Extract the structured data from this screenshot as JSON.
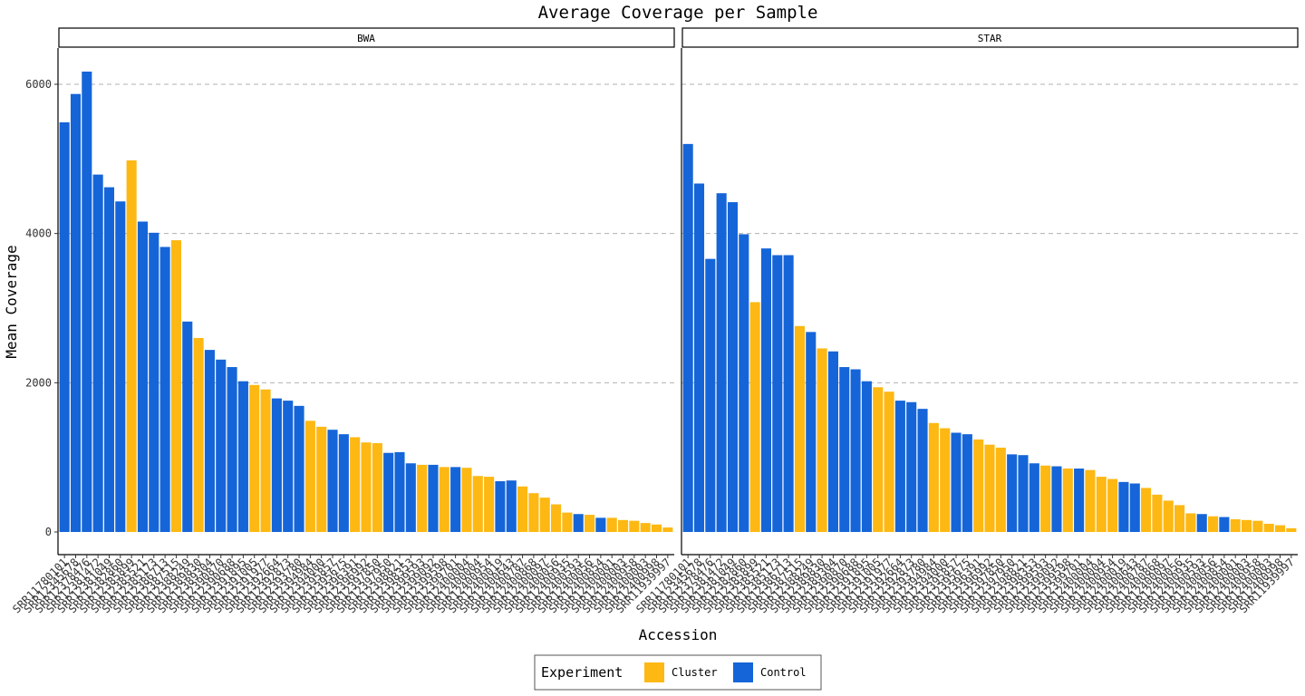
{
  "chart_data": {
    "type": "bar",
    "title": "Average Coverage per Sample",
    "xlabel": "Accession",
    "ylabel": "Mean Coverage",
    "ylim": [
      0,
      6500
    ],
    "yticks": [
      0,
      2000,
      4000,
      6000
    ],
    "grid": "horizontal dashed",
    "legend": {
      "title": "Experiment",
      "position": "bottom",
      "entries": [
        {
          "name": "Cluster",
          "color": "#FDB813"
        },
        {
          "name": "Control",
          "color": "#1565D8"
        }
      ]
    },
    "colors": {
      "Cluster": "#FDB813",
      "Control": "#1565D8"
    },
    "panels": [
      {
        "name": "BWA",
        "categories": [
          "SRR11780101",
          "SRR12345678",
          "SRR12378476",
          "SRR12381472",
          "SRR12381049",
          "SRR12382860",
          "SRR12385899",
          "SRR12385521",
          "SRR12385173",
          "SRR12386713",
          "SRR12387515",
          "SRR12388249",
          "SRR12389830",
          "SRR12389304",
          "SRR12390870",
          "SRR12390688",
          "SRR12391895",
          "SRR12391005",
          "SRR12391977",
          "SRR12392664",
          "SRR12392873",
          "SRR12393780",
          "SRR12394984",
          "SRR12394000",
          "SRR12395857",
          "SRR12395675",
          "SRR12396391",
          "SRR12396992",
          "SRR12397850",
          "SRR12397950",
          "SRR12398821",
          "SRR12398353",
          "SRR12399593",
          "SRR12399092",
          "SRR12399598",
          "SRR12399701",
          "SRR12400004",
          "SRR12400004",
          "SRR12400954",
          "SRR12400019",
          "SRR12400643",
          "SRR12400787",
          "SRR12400868",
          "SRR12400097",
          "SRR12400056",
          "SRR12400935",
          "SRR12400593",
          "SRR12400056",
          "SRR12400854",
          "SRR12400001",
          "SRR12400003",
          "SRR12400958",
          "SRR12400003",
          "SRR12400998",
          "SRR11939997"
        ],
        "groups": [
          "Control",
          "Control",
          "Control",
          "Control",
          "Control",
          "Control",
          "Cluster",
          "Control",
          "Control",
          "Control",
          "Cluster",
          "Control",
          "Cluster",
          "Control",
          "Control",
          "Control",
          "Control",
          "Cluster",
          "Cluster",
          "Control",
          "Control",
          "Control",
          "Cluster",
          "Cluster",
          "Control",
          "Control",
          "Cluster",
          "Cluster",
          "Cluster",
          "Control",
          "Control",
          "Control",
          "Cluster",
          "Control",
          "Cluster",
          "Control",
          "Cluster",
          "Cluster",
          "Cluster",
          "Control",
          "Control",
          "Cluster",
          "Cluster",
          "Cluster",
          "Cluster",
          "Cluster",
          "Control",
          "Cluster",
          "Control",
          "Cluster",
          "Cluster",
          "Cluster",
          "Cluster",
          "Cluster",
          "Cluster"
        ],
        "values": [
          5490,
          5870,
          6170,
          4790,
          4620,
          4430,
          4980,
          4160,
          4010,
          3820,
          3910,
          2820,
          2600,
          2440,
          2310,
          2210,
          2020,
          1970,
          1910,
          1790,
          1760,
          1690,
          1490,
          1410,
          1370,
          1310,
          1270,
          1200,
          1190,
          1060,
          1070,
          920,
          900,
          900,
          870,
          870,
          860,
          750,
          740,
          680,
          690,
          610,
          520,
          460,
          370,
          260,
          240,
          230,
          190,
          190,
          160,
          150,
          120,
          100,
          60
        ]
      },
      {
        "name": "STAR",
        "categories": [
          "SRR11780101",
          "SRR12345678",
          "SRR12378476",
          "SRR12381472",
          "SRR12381049",
          "SRR12382860",
          "SRR12385899",
          "SRR12385521",
          "SRR12385173",
          "SRR12386713",
          "SRR12387515",
          "SRR12388249",
          "SRR12389830",
          "SRR12389304",
          "SRR12390870",
          "SRR12390688",
          "SRR12391895",
          "SRR12391005",
          "SRR12391977",
          "SRR12392664",
          "SRR12392873",
          "SRR12393780",
          "SRR12394984",
          "SRR12394000",
          "SRR12395857",
          "SRR12395675",
          "SRR12396391",
          "SRR12396992",
          "SRR12397850",
          "SRR12397950",
          "SRR12398821",
          "SRR12398353",
          "SRR12399593",
          "SRR12399092",
          "SRR12399598",
          "SRR12399701",
          "SRR12400004",
          "SRR12400004",
          "SRR12400954",
          "SRR12400019",
          "SRR12400643",
          "SRR12400787",
          "SRR12400868",
          "SRR12400097",
          "SRR12400056",
          "SRR12400935",
          "SRR12400593",
          "SRR12400056",
          "SRR12400854",
          "SRR12400001",
          "SRR12400003",
          "SRR12400958",
          "SRR12400003",
          "SRR12400998",
          "SRR11939997"
        ],
        "groups": [
          "Control",
          "Control",
          "Control",
          "Control",
          "Control",
          "Control",
          "Cluster",
          "Control",
          "Control",
          "Control",
          "Cluster",
          "Control",
          "Cluster",
          "Control",
          "Control",
          "Control",
          "Control",
          "Cluster",
          "Cluster",
          "Control",
          "Control",
          "Control",
          "Cluster",
          "Cluster",
          "Control",
          "Control",
          "Cluster",
          "Cluster",
          "Cluster",
          "Control",
          "Control",
          "Control",
          "Cluster",
          "Control",
          "Cluster",
          "Control",
          "Cluster",
          "Cluster",
          "Cluster",
          "Control",
          "Control",
          "Cluster",
          "Cluster",
          "Cluster",
          "Cluster",
          "Cluster",
          "Control",
          "Cluster",
          "Control",
          "Cluster",
          "Cluster",
          "Cluster",
          "Cluster",
          "Cluster",
          "Cluster"
        ],
        "values": [
          5200,
          4670,
          3660,
          4540,
          4420,
          3990,
          3080,
          3800,
          3710,
          3710,
          2760,
          2680,
          2460,
          2420,
          2210,
          2180,
          2020,
          1940,
          1880,
          1760,
          1740,
          1650,
          1460,
          1390,
          1330,
          1310,
          1240,
          1170,
          1130,
          1040,
          1030,
          920,
          890,
          880,
          850,
          850,
          830,
          740,
          710,
          670,
          650,
          590,
          500,
          420,
          360,
          250,
          240,
          210,
          200,
          170,
          160,
          150,
          110,
          90,
          50
        ]
      }
    ]
  }
}
